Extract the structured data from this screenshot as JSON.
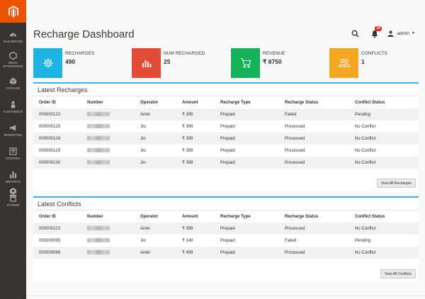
{
  "sidebar": {
    "items": [
      {
        "label": "DASHBOARD",
        "icon": "dashboard-icon"
      },
      {
        "label": "MEGA EXTENSIONS",
        "icon": "hexagon-icon"
      },
      {
        "label": "CATALOG",
        "icon": "cube-icon"
      },
      {
        "label": "CUSTOMERS",
        "icon": "person-icon"
      },
      {
        "label": "MARKETING",
        "icon": "megaphone-icon"
      },
      {
        "label": "CONTENT",
        "icon": "content-icon"
      },
      {
        "label": "REPORTS",
        "icon": "bar-chart-icon"
      },
      {
        "label": "STORES",
        "icon": "store-icon"
      }
    ]
  },
  "header": {
    "title": "Recharge Dashboard",
    "notification_count": "14",
    "user": "admin"
  },
  "stats": [
    {
      "label": "RECHARGES",
      "value": "490",
      "color": "#1db4e3",
      "icon": "gear-icon"
    },
    {
      "label": "NUM RECHARGED",
      "value": "25",
      "color": "#e24b36",
      "icon": "bar-chart-icon"
    },
    {
      "label": "REVENUE",
      "value": "₹ 8750",
      "color": "#14b359",
      "icon": "cart-icon"
    },
    {
      "label": "CONFLICTS",
      "value": "1",
      "color": "#f5a623",
      "icon": "users-icon"
    }
  ],
  "latest_recharges": {
    "title": "Latest Recharges",
    "columns": [
      "Order ID",
      "Number",
      "Operator",
      "Amount",
      "Recharge Type",
      "Recharge Status",
      "Conflict Status"
    ],
    "rows": [
      {
        "order_id": "000000123",
        "operator": "Airtel",
        "amount": "₹ 399",
        "type": "Prepaid",
        "status": "Failed",
        "conflict": "Pending"
      },
      {
        "order_id": "000000125",
        "operator": "Jio",
        "amount": "₹ 399",
        "type": "Prepaid",
        "status": "Processed",
        "conflict": "No Conflict"
      },
      {
        "order_id": "000000128",
        "operator": "Jio",
        "amount": "₹ 399",
        "type": "Prepaid",
        "status": "Processed",
        "conflict": "No Conflict"
      },
      {
        "order_id": "000000129",
        "operator": "Jio",
        "amount": "₹ 399",
        "type": "Prepaid",
        "status": "Processed",
        "conflict": "No Conflict"
      },
      {
        "order_id": "000000130",
        "operator": "Jio",
        "amount": "₹ 399",
        "type": "Prepaid",
        "status": "Processed",
        "conflict": "No Conflict"
      }
    ],
    "button": "View All Recharges"
  },
  "latest_conflicts": {
    "title": "Latest Conflicts",
    "columns": [
      "Order ID",
      "Number",
      "Operator",
      "Amount",
      "Recharge Type",
      "Recharge Status",
      "Conflict Status"
    ],
    "rows": [
      {
        "order_id": "000000223",
        "operator": "Airtel",
        "amount": "₹ 399",
        "type": "Prepaid",
        "status": "Processed",
        "conflict": "No Conflict"
      },
      {
        "order_id": "000000095",
        "operator": "Jio",
        "amount": "₹ 149",
        "type": "Prepaid",
        "status": "Failed",
        "conflict": "Pending"
      },
      {
        "order_id": "000000098",
        "operator": "Airtel",
        "amount": "₹ 499",
        "type": "Prepaid",
        "status": "Processed",
        "conflict": "No Conflict"
      }
    ],
    "button": "View All Conflicts"
  }
}
